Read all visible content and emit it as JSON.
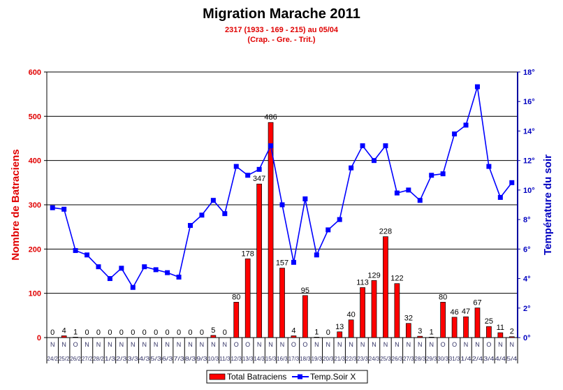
{
  "chart_data": {
    "type": "bar+line",
    "title": "Migration Marache 2011",
    "subtitle_1": "2317 (1933 - 169 - 215) au 05/04",
    "subtitle_2": "(Crap. - Gre. - Trit.)",
    "ylabel_left": "Nombre de Batraciens",
    "ylabel_right": "Température du soir",
    "ylim_left": [
      0,
      600
    ],
    "yticks_left": [
      0,
      100,
      200,
      300,
      400,
      500,
      600
    ],
    "ylim_right": [
      0,
      18
    ],
    "yticks_right": [
      "0°",
      "2°",
      "4°",
      "6°",
      "8°",
      "10°",
      "12°",
      "14°",
      "16°",
      "18°"
    ],
    "grid": "horizontal",
    "legend_position": "bottom",
    "categories": [
      "24/2",
      "25/2",
      "26/2",
      "27/2",
      "28/2",
      "1/3",
      "2/3",
      "3/3",
      "4/3",
      "5/3",
      "6/3",
      "7/3",
      "8/3",
      "9/3",
      "10/3",
      "11/3",
      "12/3",
      "13/3",
      "14/3",
      "15/3",
      "16/3",
      "17/3",
      "18/3",
      "19/3",
      "20/3",
      "21/3",
      "22/3",
      "23/3",
      "24/3",
      "25/3",
      "26/3",
      "27/3",
      "28/3",
      "29/3",
      "30/3",
      "31/3",
      "1/4",
      "2/4",
      "3/4",
      "4/4",
      "5/4"
    ],
    "weather_codes": [
      "N",
      "N",
      "O",
      "N",
      "N",
      "N",
      "N",
      "N",
      "N",
      "N",
      "N",
      "N",
      "N",
      "N",
      "N",
      "N",
      "O",
      "O",
      "N",
      "N",
      "N",
      "O",
      "O",
      "N",
      "N",
      "N",
      "N",
      "N",
      "N",
      "N",
      "N",
      "N",
      "N",
      "N",
      "O",
      "O",
      "N",
      "N",
      "O",
      "N",
      "N"
    ],
    "series": [
      {
        "name": "Total Batraciens",
        "type": "bar",
        "color": "#ff0000",
        "values": [
          0,
          4,
          1,
          0,
          0,
          0,
          0,
          0,
          0,
          0,
          0,
          0,
          0,
          0,
          5,
          0,
          80,
          178,
          347,
          486,
          157,
          4,
          95,
          1,
          0,
          13,
          40,
          113,
          129,
          228,
          122,
          32,
          3,
          1,
          80,
          46,
          47,
          67,
          25,
          11,
          2
        ]
      },
      {
        "name": "Temp.Soir X",
        "type": "line",
        "axis": "right",
        "color": "#0000ff",
        "values": [
          8.8,
          8.7,
          5.9,
          5.6,
          4.8,
          4.0,
          4.7,
          3.4,
          4.8,
          4.6,
          4.4,
          4.1,
          7.6,
          8.3,
          9.3,
          8.4,
          11.6,
          11.0,
          11.4,
          13.0,
          9.0,
          5.1,
          9.4,
          5.6,
          7.3,
          8.0,
          11.5,
          13.0,
          12.0,
          13.0,
          9.8,
          10.0,
          9.3,
          11.0,
          11.1,
          13.8,
          14.4,
          17.0,
          11.6,
          9.5,
          10.5
        ]
      }
    ]
  }
}
